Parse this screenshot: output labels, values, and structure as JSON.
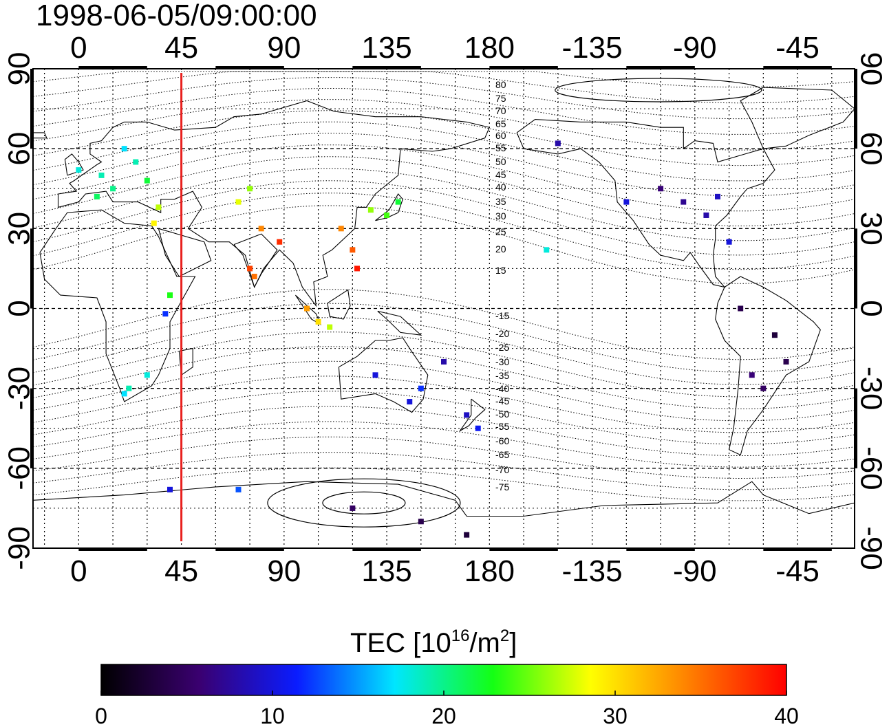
{
  "title": "1998-06-05/09:00:00",
  "colors": {
    "meridian_marker": "#e8201e",
    "colormap": [
      "#000000",
      "#3a0070",
      "#0a1cff",
      "#00e6ff",
      "#14ff14",
      "#ffff00",
      "#ff8000",
      "#ff0000"
    ]
  },
  "map": {
    "projection": "equirectangular",
    "lon_ticks_top": [
      "0",
      "45",
      "90",
      "135",
      "180",
      "-135",
      "-90",
      "-45"
    ],
    "lon_ticks_bottom": [
      "0",
      "45",
      "90",
      "135",
      "180",
      "-135",
      "-90",
      "-45"
    ],
    "lat_ticks_left": [
      "90",
      "60",
      "30",
      "0",
      "-30",
      "-60",
      "-90"
    ],
    "lat_ticks_right": [
      "90",
      "60",
      "30",
      "0",
      "-30",
      "-60",
      "-90"
    ],
    "graticule_lon_step": 15,
    "graticule_lat_step": 15,
    "marker_meridian_lon": 45,
    "contour_labels": [
      "80",
      "75",
      "70",
      "65",
      "60",
      "55",
      "50",
      "45",
      "40",
      "35",
      "30",
      "25",
      "20",
      "15",
      "-15",
      "-20",
      "-25",
      "-30",
      "-35",
      "-40",
      "-45",
      "-50",
      "-55",
      "-60",
      "-65",
      "-70",
      "-75"
    ]
  },
  "colorbar": {
    "title_main": "TEC  [10",
    "title_sup1": "16",
    "title_mid": "/m",
    "title_sup2": "2",
    "title_end": "]",
    "min": 0,
    "max": 40,
    "tick_labels": [
      "0",
      "10",
      "20",
      "30",
      "40"
    ]
  },
  "chart_data": {
    "type": "scatter",
    "title": "1998-06-05/09:00:00",
    "value_label": "TEC  [10^16/m^2]",
    "value_range": [
      0,
      40
    ],
    "xlim": [
      -20,
      340
    ],
    "ylim": [
      -90,
      90
    ],
    "points": [
      {
        "lon": 10,
        "lat": 50,
        "tec": 19
      },
      {
        "lon": 0,
        "lat": 52,
        "tec": 18
      },
      {
        "lon": 15,
        "lat": 45,
        "tec": 20
      },
      {
        "lon": 20,
        "lat": 60,
        "tec": 17
      },
      {
        "lon": 25,
        "lat": 55,
        "tec": 19
      },
      {
        "lon": 30,
        "lat": 48,
        "tec": 22
      },
      {
        "lon": 8,
        "lat": 42,
        "tec": 21
      },
      {
        "lon": 35,
        "lat": 38,
        "tec": 27
      },
      {
        "lon": 33,
        "lat": 32,
        "tec": 29
      },
      {
        "lon": 40,
        "lat": 5,
        "tec": 23
      },
      {
        "lon": 38,
        "lat": -2,
        "tec": 12
      },
      {
        "lon": 30,
        "lat": -25,
        "tec": 18
      },
      {
        "lon": 22,
        "lat": -30,
        "tec": 19
      },
      {
        "lon": 20,
        "lat": -32,
        "tec": 17
      },
      {
        "lon": 75,
        "lat": 45,
        "tec": 26
      },
      {
        "lon": 70,
        "lat": 40,
        "tec": 28
      },
      {
        "lon": 80,
        "lat": 30,
        "tec": 34
      },
      {
        "lon": 88,
        "lat": 25,
        "tec": 38
      },
      {
        "lon": 77,
        "lat": 12,
        "tec": 35
      },
      {
        "lon": 75,
        "lat": 15,
        "tec": 37
      },
      {
        "lon": 120,
        "lat": 22,
        "tec": 36
      },
      {
        "lon": 122,
        "lat": 15,
        "tec": 39
      },
      {
        "lon": 115,
        "lat": 30,
        "tec": 34
      },
      {
        "lon": 135,
        "lat": 35,
        "tec": 24
      },
      {
        "lon": 140,
        "lat": 40,
        "tec": 22
      },
      {
        "lon": 128,
        "lat": 37,
        "tec": 26
      },
      {
        "lon": 105,
        "lat": -5,
        "tec": 30
      },
      {
        "lon": 110,
        "lat": -7,
        "tec": 27
      },
      {
        "lon": 100,
        "lat": 0,
        "tec": 33
      },
      {
        "lon": 150,
        "lat": -30,
        "tec": 12
      },
      {
        "lon": 145,
        "lat": -35,
        "tec": 10
      },
      {
        "lon": 170,
        "lat": -40,
        "tec": 9
      },
      {
        "lon": 175,
        "lat": -45,
        "tec": 11
      },
      {
        "lon": 160,
        "lat": -20,
        "tec": 8
      },
      {
        "lon": 130,
        "lat": -25,
        "tec": 10
      },
      {
        "lon": 205,
        "lat": 22,
        "tec": 18
      },
      {
        "lon": 210,
        "lat": 62,
        "tec": 8
      },
      {
        "lon": 240,
        "lat": 40,
        "tec": 10
      },
      {
        "lon": 255,
        "lat": 45,
        "tec": 6
      },
      {
        "lon": 265,
        "lat": 40,
        "tec": 7
      },
      {
        "lon": 275,
        "lat": 35,
        "tec": 8
      },
      {
        "lon": 280,
        "lat": 42,
        "tec": 9
      },
      {
        "lon": 285,
        "lat": 25,
        "tec": 10
      },
      {
        "lon": 290,
        "lat": 0,
        "tec": 4
      },
      {
        "lon": 305,
        "lat": -10,
        "tec": 3
      },
      {
        "lon": 310,
        "lat": -20,
        "tec": 4
      },
      {
        "lon": 300,
        "lat": -30,
        "tec": 5
      },
      {
        "lon": 295,
        "lat": -25,
        "tec": 6
      },
      {
        "lon": 40,
        "lat": -68,
        "tec": 10
      },
      {
        "lon": 70,
        "lat": -68,
        "tec": 13
      },
      {
        "lon": 150,
        "lat": -80,
        "tec": 4
      },
      {
        "lon": 170,
        "lat": -85,
        "tec": 3
      },
      {
        "lon": 120,
        "lat": -75,
        "tec": 5
      }
    ]
  }
}
